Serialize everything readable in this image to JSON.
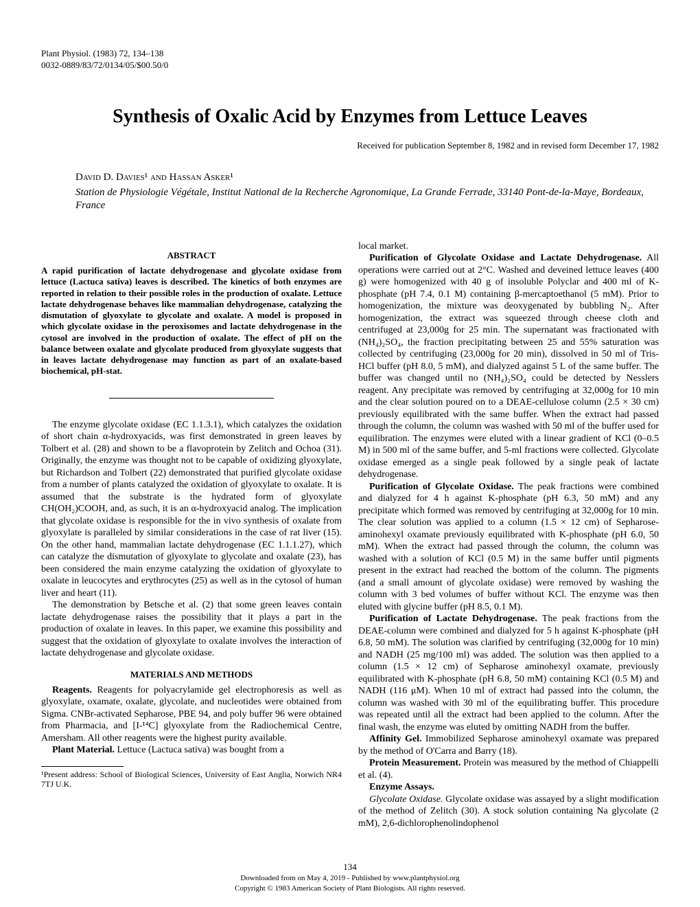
{
  "header": {
    "journal": "Plant Physiol. (1983) 72, 134–138",
    "identifier": "0032-0889/83/72/0134/05/$00.50/0"
  },
  "title": "Synthesis of Oxalic Acid by Enzymes from Lettuce Leaves",
  "received": "Received for publication September 8, 1982 and in revised form December 17, 1982",
  "authors": "David D. Davies¹ and Hassan Asker¹",
  "affiliation": "Station de Physiologie Végétale, Institut National de la Recherche Agronomique, La Grande Ferrade, 33140 Pont-de-la-Maye, Bordeaux, France",
  "abstract": {
    "header": "ABSTRACT",
    "text": "A rapid purification of lactate dehydrogenase and glycolate oxidase from lettuce (Lactuca sativa) leaves is described. The kinetics of both enzymes are reported in relation to their possible roles in the production of oxalate. Lettuce lactate dehydrogenase behaves like mammalian dehydrogenase, catalyzing the dismutation of glyoxylate to glycolate and oxalate. A model is proposed in which glycolate oxidase in the peroxisomes and lactate dehydrogenase in the cytosol are involved in the production of oxalate. The effect of pH on the balance between oxalate and glycolate produced from glyoxylate suggests that in leaves lactate dehydrogenase may function as part of an oxalate-based biochemical, pH-stat."
  },
  "intro": {
    "para1": "The enzyme glycolate oxidase (EC 1.1.3.1), which catalyzes the oxidation of short chain α-hydroxyacids, was first demonstrated in green leaves by Tolbert et al. (28) and shown to be a flavoprotein by Zelitch and Ochoa (31). Originally, the enzyme was thought not to be capable of oxidizing glyoxylate, but Richardson and Tolbert (22) demonstrated that purified glycolate oxidase from a number of plants catalyzed the oxidation of glyoxylate to oxalate. It is assumed that the substrate is the hydrated form of glyoxylate CH(OH₂)COOH, and, as such, it is an α-hydroxyacid analog. The implication that glycolate oxidase is responsible for the in vivo synthesis of oxalate from glyoxylate is paralleled by similar considerations in the case of rat liver (15). On the other hand, mammalian lactate dehydrogenase (EC 1.1.1.27), which can catalyze the dismutation of glyoxylate to glycolate and oxalate (23), has been considered the main enzyme catalyzing the oxidation of glyoxylate to oxalate in leucocytes and erythrocytes (25) as well as in the cytosol of human liver and heart (11).",
    "para2": "The demonstration by Betsche et al. (2) that some green leaves contain lactate dehydrogenase raises the possibility that it plays a part in the production of oxalate in leaves. In this paper, we examine this possibility and suggest that the oxidation of glyoxylate to oxalate involves the interaction of lactate dehydrogenase and glycolate oxidase."
  },
  "methods": {
    "header": "MATERIALS AND METHODS",
    "reagents_label": "Reagents.",
    "reagents_text": " Reagents for polyacrylamide gel electrophoresis as well as glyoxylate, oxamate, oxalate, glycolate, and nucleotides were obtained from Sigma. CNBr-activated Sepharose, PBE 94, and poly buffer 96 were obtained from Pharmacia, and [I-¹⁴C] glyoxylate from the Radiochemical Centre, Amersham. All other reagents were the highest purity available.",
    "plant_label": "Plant Material.",
    "plant_text": " Lettuce (Lactuca sativa) was bought from a"
  },
  "footnote": "¹Present address: School of Biological Sciences, University of East Anglia, Norwich NR4 7TJ U.K.",
  "col2": {
    "local_market": "local market.",
    "purif_label": "Purification of Glycolate Oxidase and Lactate Dehydrogenase.",
    "purif_text": " All operations were carried out at 2°C. Washed and deveined lettuce leaves (400 g) were homogenized with 40 g of insoluble Polyclar and 400 ml of K-phosphate (pH 7.4, 0.1 M) containing β-mercaptoethanol (5 mM). Prior to homogenization, the mixture was deoxygenated by bubbling N₂. After homogenization, the extract was squeezed through cheese cloth and centrifuged at 23,000g for 25 min. The supernatant was fractionated with (NH₄)₂SO₄, the fraction precipitating between 25 and 55% saturation was collected by centrifuging (23,000g for 20 min), dissolved in 50 ml of Tris-HCl buffer (pH 8.0, 5 mM), and dialyzed against 5 L of the same buffer. The buffer was changed until no (NH₄)₂SO₄ could be detected by Nesslers reagent. Any precipitate was removed by centrifuging at 32,000g for 10 min and the clear solution poured on to a DEAE-cellulose column (2.5 × 30 cm) previously equilibrated with the same buffer. When the extract had passed through the column, the column was washed with 50 ml of the buffer used for equilibration. The enzymes were eluted with a linear gradient of KCl (0–0.5 M) in 500 ml of the same buffer, and 5-ml fractions were collected. Glycolate oxidase emerged as a single peak followed by a single peak of lactate dehydrogenase.",
    "glyc_label": "Purification of Glycolate Oxidase.",
    "glyc_text": " The peak fractions were combined and dialyzed for 4 h against K-phosphate (pH 6.3, 50 mM) and any precipitate which formed was removed by centrifuging at 32,000g for 10 min. The clear solution was applied to a column (1.5 × 12 cm) of Sepharose-aminohexyl oxamate previously equilibrated with K-phosphate (pH 6.0, 50 mM). When the extract had passed through the column, the column was washed with a solution of KCl (0.5 M) in the same buffer until pigments present in the extract had reached the bottom of the column. The pigments (and a small amount of glycolate oxidase) were removed by washing the column with 3 bed volumes of buffer without KCl. The enzyme was then eluted with glycine buffer (pH 8.5, 0.1 M).",
    "lact_label": "Purification of Lactate Dehydrogenase.",
    "lact_text": " The peak fractions from the DEAE-column were combined and dialyzed for 5 h against K-phosphate (pH 6.8, 50 mM). The solution was clarified by centrifuging (32,000g for 10 min) and NADH (25 mg/100 ml) was added. The solution was then applied to a column (1.5 × 12 cm) of Sepharose aminohexyl oxamate, previously equilibrated with K-phosphate (pH 6.8, 50 mM) containing KCl (0.5 M) and NADH (116 μM). When 10 ml of extract had passed into the column, the column was washed with 30 ml of the equilibrating buffer. This procedure was repeated until all the extract had been applied to the column. After the final wash, the enzyme was eluted by omitting NADH from the buffer.",
    "aff_label": "Affinity Gel.",
    "aff_text": " Immobilized Sepharose aminohexyl oxamate was prepared by the method of O'Carra and Barry (18).",
    "prot_label": "Protein Measurement.",
    "prot_text": " Protein was measured by the method of Chiappelli et al. (4).",
    "assay_label": "Enzyme Assays.",
    "glyc_assay_label": "Glycolate Oxidase.",
    "glyc_assay_text": " Glycolate oxidase was assayed by a slight modification of the method of Zelitch (30). A stock solution containing Na glycolate (2 mM), 2,6-dichlorophenolindophenol"
  },
  "page_number": "134",
  "download": {
    "line1": "Downloaded from on May 4, 2019 - Published by www.plantphysiol.org",
    "line2": "Copyright © 1983 American Society of Plant Biologists. All rights reserved."
  }
}
